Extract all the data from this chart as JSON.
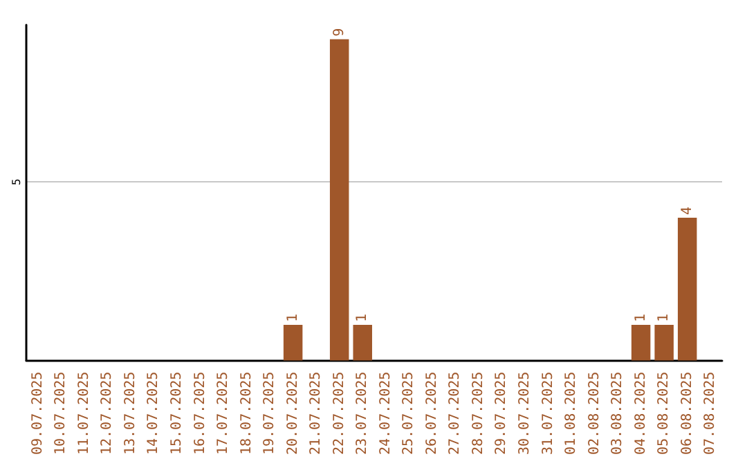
{
  "chart_data": {
    "type": "bar",
    "categories": [
      "09.07.2025",
      "10.07.2025",
      "11.07.2025",
      "12.07.2025",
      "13.07.2025",
      "14.07.2025",
      "15.07.2025",
      "16.07.2025",
      "17.07.2025",
      "18.07.2025",
      "19.07.2025",
      "20.07.2025",
      "21.07.2025",
      "22.07.2025",
      "23.07.2025",
      "24.07.2025",
      "25.07.2025",
      "26.07.2025",
      "27.07.2025",
      "28.07.2025",
      "29.07.2025",
      "30.07.2025",
      "31.07.2025",
      "01.08.2025",
      "02.08.2025",
      "03.08.2025",
      "04.08.2025",
      "05.08.2025",
      "06.08.2025",
      "07.08.2025"
    ],
    "values": [
      0,
      0,
      0,
      0,
      0,
      0,
      0,
      0,
      0,
      0,
      0,
      1,
      0,
      9,
      1,
      0,
      0,
      0,
      0,
      0,
      0,
      0,
      0,
      0,
      0,
      0,
      1,
      1,
      4,
      0
    ],
    "value_labels": [
      null,
      null,
      null,
      null,
      null,
      null,
      null,
      null,
      null,
      null,
      null,
      "1",
      null,
      "9",
      "1",
      null,
      null,
      null,
      null,
      null,
      null,
      null,
      null,
      null,
      null,
      null,
      "1",
      "1",
      "4",
      null
    ],
    "color": "#a0572a",
    "ylim": [
      0,
      9.4
    ],
    "yticks": [
      5
    ],
    "grid": "y"
  }
}
